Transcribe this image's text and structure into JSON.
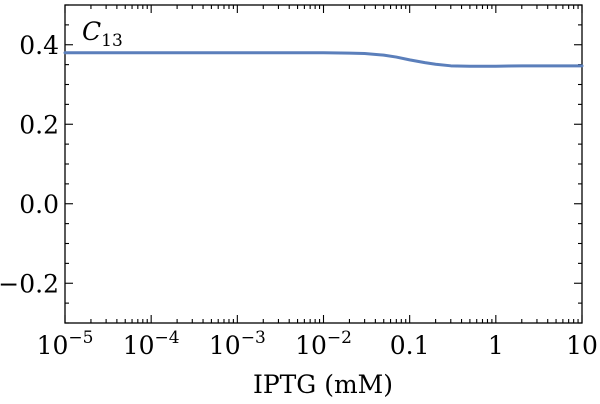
{
  "chart_data": {
    "type": "line",
    "title": "",
    "panel_label": {
      "main": "C",
      "subscript": "13"
    },
    "xlabel": "IPTG (mM)",
    "ylabel": "",
    "x_scale": "log",
    "xlim": [
      1e-05,
      10
    ],
    "ylim": [
      -0.3,
      0.5
    ],
    "x_ticks": [
      {
        "value": 1e-05,
        "base": "10",
        "exp": "−5"
      },
      {
        "value": 0.0001,
        "base": "10",
        "exp": "−4"
      },
      {
        "value": 0.001,
        "base": "10",
        "exp": "−3"
      },
      {
        "value": 0.01,
        "base": "10",
        "exp": "−2"
      },
      {
        "value": 0.1,
        "text": "0.1"
      },
      {
        "value": 1,
        "text": "1"
      },
      {
        "value": 10,
        "text": "10"
      }
    ],
    "y_ticks": [
      {
        "value": -0.2,
        "text": "−0.2"
      },
      {
        "value": 0.0,
        "text": "0.0"
      },
      {
        "value": 0.2,
        "text": "0.2"
      },
      {
        "value": 0.4,
        "text": "0.4"
      }
    ],
    "grid": false,
    "legend": "none",
    "series": [
      {
        "color": "#5b7fbb",
        "x": [
          1e-05,
          0.0001,
          0.001,
          0.01,
          0.02,
          0.03,
          0.05,
          0.07,
          0.1,
          0.15,
          0.2,
          0.3,
          0.5,
          0.7,
          1,
          2,
          5,
          10
        ],
        "y": [
          0.38,
          0.38,
          0.38,
          0.38,
          0.379,
          0.378,
          0.374,
          0.369,
          0.362,
          0.355,
          0.351,
          0.347,
          0.346,
          0.346,
          0.346,
          0.347,
          0.347,
          0.347
        ]
      }
    ]
  }
}
